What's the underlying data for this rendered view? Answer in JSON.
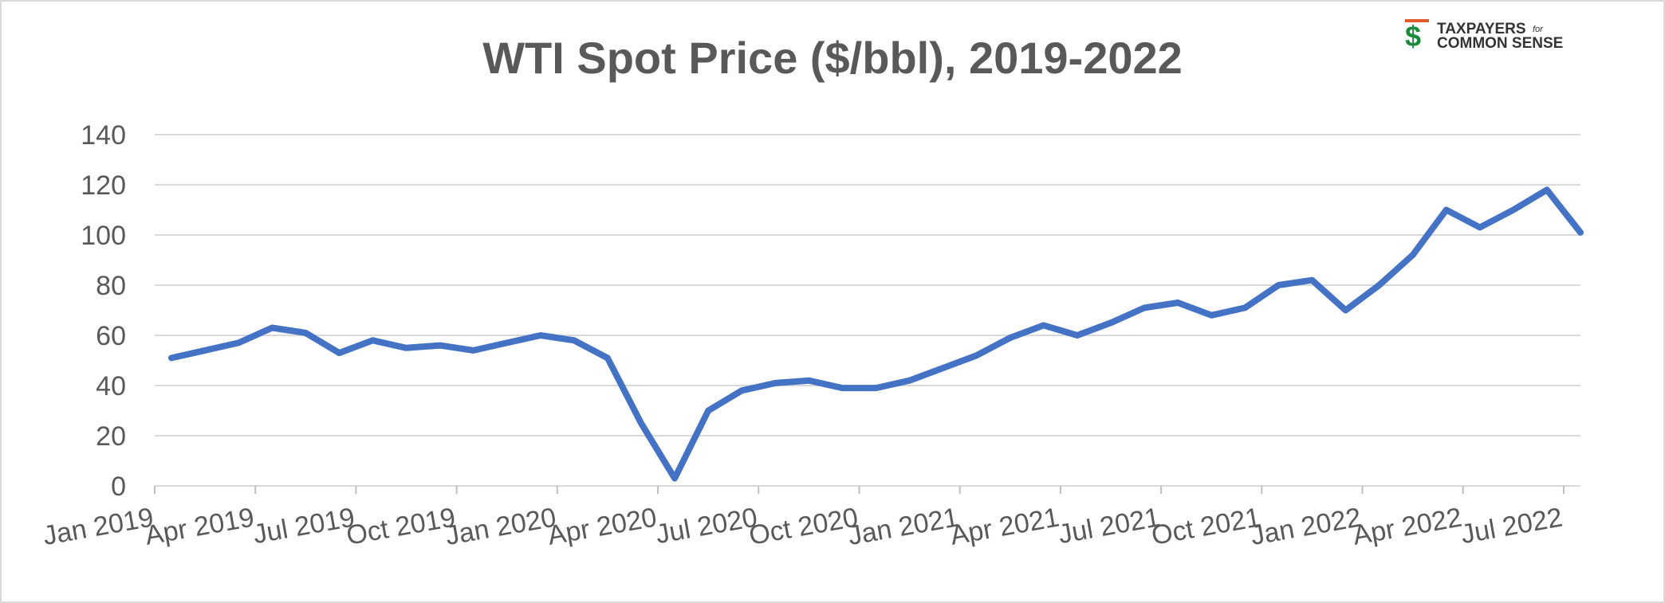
{
  "chart_data": {
    "type": "line",
    "title": "WTI Spot Price ($/bbl), 2019-2022",
    "logo": {
      "line1": "TAXPAYERS",
      "small": "for",
      "line2": "COMMON SENSE"
    },
    "x": [
      "2019-01",
      "2019-02",
      "2019-03",
      "2019-04",
      "2019-05",
      "2019-06",
      "2019-07",
      "2019-08",
      "2019-09",
      "2019-10",
      "2019-11",
      "2019-12",
      "2020-01",
      "2020-02",
      "2020-03",
      "2020-04",
      "2020-05",
      "2020-06",
      "2020-07",
      "2020-08",
      "2020-09",
      "2020-10",
      "2020-11",
      "2020-12",
      "2021-01",
      "2021-02",
      "2021-03",
      "2021-04",
      "2021-05",
      "2021-06",
      "2021-07",
      "2021-08",
      "2021-09",
      "2021-10",
      "2021-11",
      "2021-12",
      "2022-01",
      "2022-02",
      "2022-03",
      "2022-04",
      "2022-05",
      "2022-06",
      "2022-07"
    ],
    "series": [
      {
        "name": "WTI Spot Price",
        "color": "#4472c4",
        "values": [
          51,
          54,
          57,
          63,
          61,
          53,
          58,
          55,
          56,
          54,
          57,
          60,
          58,
          51,
          25,
          3,
          30,
          38,
          41,
          42,
          39,
          39,
          42,
          47,
          52,
          59,
          64,
          60,
          65,
          71,
          73,
          68,
          71,
          80,
          82,
          70,
          80,
          92,
          110,
          103,
          110,
          118,
          101
        ]
      }
    ],
    "xlim": [
      "2019-01",
      "2022-08"
    ],
    "xticks": [
      {
        "value": "2019-01",
        "label": "Jan 2019"
      },
      {
        "value": "2019-04",
        "label": "Apr 2019"
      },
      {
        "value": "2019-07",
        "label": "Jul 2019"
      },
      {
        "value": "2019-10",
        "label": "Oct 2019"
      },
      {
        "value": "2020-01",
        "label": "Jan 2020"
      },
      {
        "value": "2020-04",
        "label": "Apr 2020"
      },
      {
        "value": "2020-07",
        "label": "Jul 2020"
      },
      {
        "value": "2020-10",
        "label": "Oct 2020"
      },
      {
        "value": "2021-01",
        "label": "Jan 2021"
      },
      {
        "value": "2021-04",
        "label": "Apr 2021"
      },
      {
        "value": "2021-07",
        "label": "Jul 2021"
      },
      {
        "value": "2021-10",
        "label": "Oct 2021"
      },
      {
        "value": "2022-01",
        "label": "Jan 2022"
      },
      {
        "value": "2022-04",
        "label": "Apr 2022"
      },
      {
        "value": "2022-07",
        "label": "Jul 2022"
      }
    ],
    "ylim": [
      0,
      140
    ],
    "yticks": [
      0,
      20,
      40,
      60,
      80,
      100,
      120,
      140
    ],
    "grid": true
  }
}
